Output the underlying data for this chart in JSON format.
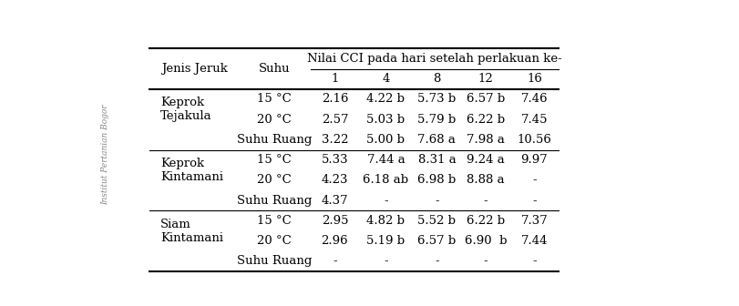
{
  "title_top": "Nilai CCI pada hari setelah perlakuan ke-",
  "col_header1": "Jenis Jeruk",
  "col_header2": "Suhu",
  "day_cols": [
    "1",
    "4",
    "8",
    "12",
    "16"
  ],
  "rows": [
    {
      "jenis": "Keprok\nTejakula",
      "suhu": "15 °C",
      "vals": [
        "2.16",
        "4.22 b",
        "5.73 b",
        "6.57 b",
        "7.46"
      ]
    },
    {
      "jenis": "",
      "suhu": "20 °C",
      "vals": [
        "2.57",
        "5.03 b",
        "5.79 b",
        "6.22 b",
        "7.45"
      ]
    },
    {
      "jenis": "",
      "suhu": "Suhu Ruang",
      "vals": [
        "3.22",
        "5.00 b",
        "7.68 a",
        "7.98 a",
        "10.56"
      ]
    },
    {
      "jenis": "Keprok\nKintamani",
      "suhu": "15 °C",
      "vals": [
        "5.33",
        "7.44 a",
        "8.31 a",
        "9.24 a",
        "9.97"
      ]
    },
    {
      "jenis": "",
      "suhu": "20 °C",
      "vals": [
        "4.23",
        "6.18 ab",
        "6.98 b",
        "8.88 a",
        "-"
      ]
    },
    {
      "jenis": "",
      "suhu": "Suhu Ruang",
      "vals": [
        "4.37",
        "-",
        "-",
        "-",
        "-"
      ]
    },
    {
      "jenis": "Siam\nKintamani",
      "suhu": "15 °C",
      "vals": [
        "2.95",
        "4.82 b",
        "5.52 b",
        "6.22 b",
        "7.37"
      ]
    },
    {
      "jenis": "",
      "suhu": "20 °C",
      "vals": [
        "2.96",
        "5.19 b",
        "6.57 b",
        "6.90  b",
        "7.44"
      ]
    },
    {
      "jenis": "",
      "suhu": "Suhu Ruang",
      "vals": [
        "-",
        "-",
        "-",
        "-",
        "-"
      ]
    }
  ],
  "group_rows": [
    0,
    3,
    6
  ],
  "separator_rows": [
    2,
    5
  ],
  "bg_color": "#ffffff",
  "font_size": 9.5,
  "header_font_size": 9.5,
  "watermark_text": "Institut Pertanian Bogor"
}
